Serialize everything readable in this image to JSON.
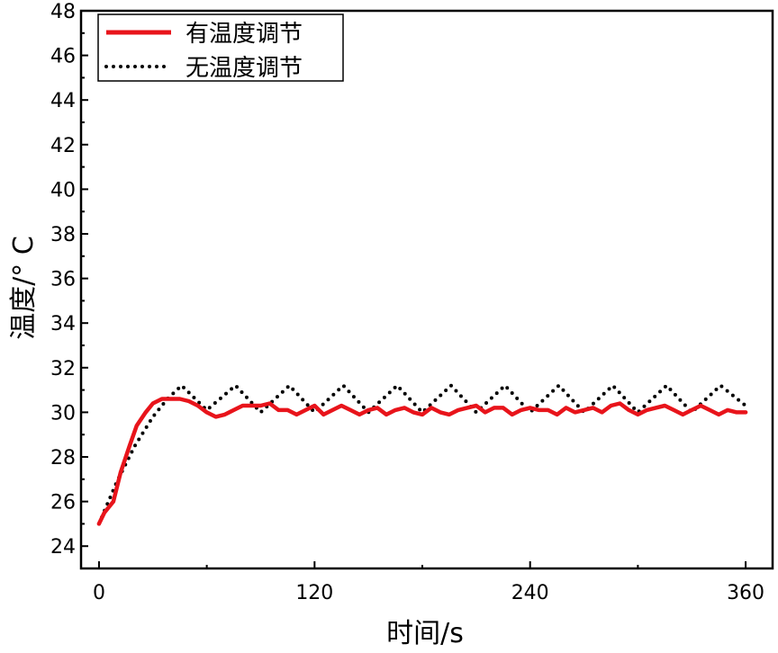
{
  "chart_data": {
    "type": "line",
    "xlabel": "时间/s",
    "ylabel": "温度/° C",
    "xlim": [
      -10,
      375
    ],
    "ylim": [
      23,
      48
    ],
    "xticks": [
      0,
      120,
      240,
      360
    ],
    "yticks": [
      24,
      26,
      28,
      30,
      32,
      34,
      36,
      38,
      40,
      42,
      44,
      46,
      48
    ],
    "grid": false,
    "legend_position": "top-left",
    "series": [
      {
        "name": "有温度调节",
        "color": "#e8141b",
        "style": "solid",
        "x": [
          0,
          3,
          8,
          12,
          17,
          21,
          26,
          30,
          35,
          40,
          45,
          50,
          55,
          60,
          65,
          70,
          75,
          80,
          85,
          90,
          95,
          100,
          105,
          110,
          115,
          120,
          125,
          130,
          135,
          140,
          145,
          150,
          155,
          160,
          165,
          170,
          175,
          180,
          185,
          190,
          195,
          200,
          205,
          210,
          215,
          220,
          225,
          230,
          235,
          240,
          245,
          250,
          255,
          260,
          265,
          270,
          275,
          280,
          285,
          290,
          295,
          300,
          305,
          310,
          315,
          320,
          325,
          330,
          335,
          340,
          345,
          350,
          355,
          360
        ],
        "y": [
          25.0,
          25.5,
          26.0,
          27.3,
          28.5,
          29.4,
          30.0,
          30.4,
          30.6,
          30.6,
          30.6,
          30.5,
          30.3,
          30.0,
          29.8,
          29.9,
          30.1,
          30.3,
          30.3,
          30.3,
          30.4,
          30.1,
          30.1,
          29.9,
          30.1,
          30.3,
          29.9,
          30.1,
          30.3,
          30.1,
          29.9,
          30.1,
          30.2,
          29.9,
          30.1,
          30.2,
          30.0,
          29.9,
          30.2,
          30.0,
          29.9,
          30.1,
          30.2,
          30.3,
          30.0,
          30.2,
          30.2,
          29.9,
          30.1,
          30.2,
          30.1,
          30.1,
          29.9,
          30.2,
          30.0,
          30.1,
          30.2,
          30.0,
          30.3,
          30.4,
          30.1,
          29.9,
          30.1,
          30.2,
          30.3,
          30.1,
          29.9,
          30.1,
          30.3,
          30.1,
          29.9,
          30.1,
          30.0,
          30.0
        ]
      },
      {
        "name": "无温度调节",
        "color": "#000000",
        "style": "dotted",
        "x": [
          0,
          10,
          20,
          30,
          38,
          46,
          60,
          76,
          90,
          106,
          120,
          136,
          150,
          166,
          180,
          196,
          210,
          226,
          240,
          256,
          270,
          286,
          300,
          316,
          330,
          346,
          360
        ],
        "y": [
          25.0,
          26.9,
          28.5,
          29.8,
          30.6,
          31.2,
          30.1,
          31.2,
          30.0,
          31.2,
          30.0,
          31.2,
          30.0,
          31.2,
          30.0,
          31.2,
          30.0,
          31.2,
          30.0,
          31.2,
          30.0,
          31.2,
          30.0,
          31.2,
          30.0,
          31.2,
          30.3
        ]
      }
    ]
  }
}
